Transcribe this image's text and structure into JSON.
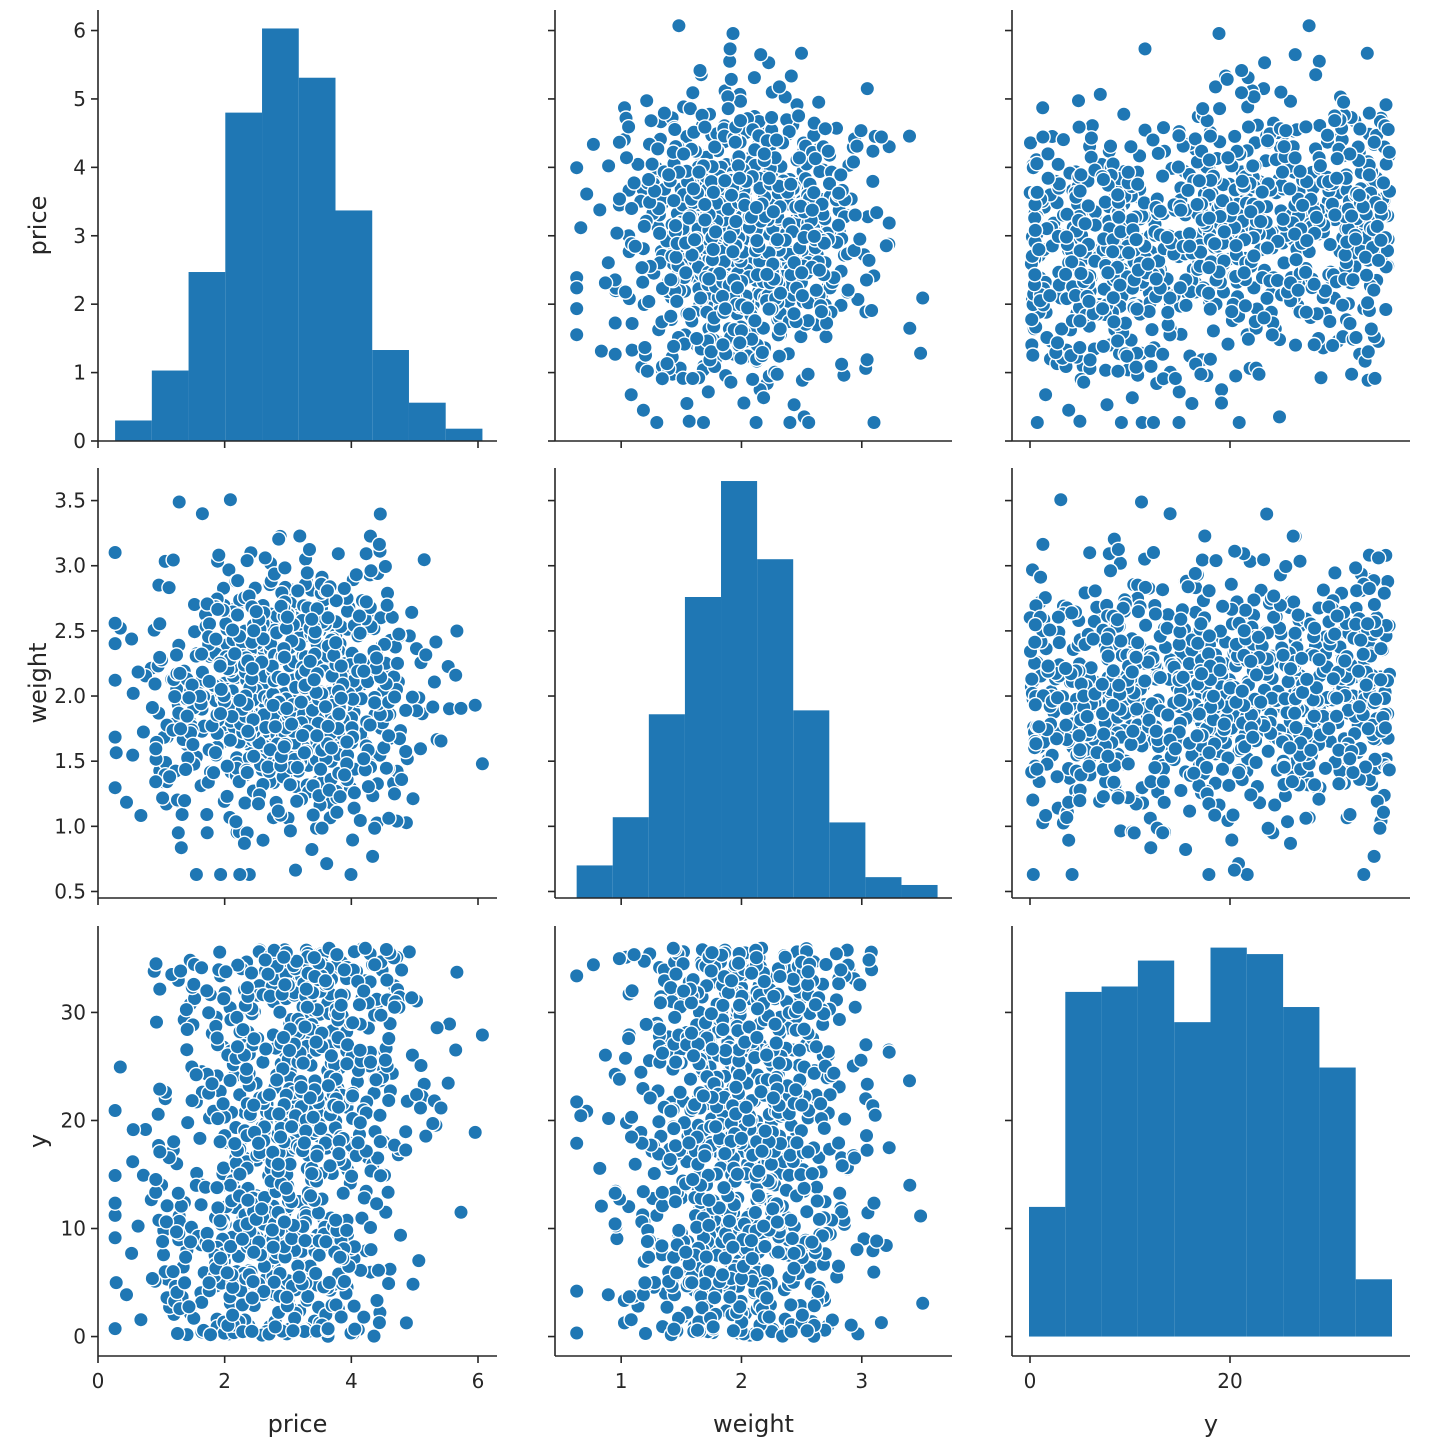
{
  "chart_data": {
    "type": "scatter",
    "layout": "pairplot",
    "variables": [
      "price",
      "weight",
      "y"
    ],
    "point_color": "#1f77b4",
    "hist_color": "#1f77b4",
    "point_count": 1000,
    "axes": {
      "price": {
        "range": [
          0,
          6.3
        ],
        "ticks": [
          0,
          1,
          2,
          3,
          4,
          5,
          6
        ],
        "hist_ticks": [
          0,
          2,
          4,
          6
        ]
      },
      "weight": {
        "range": [
          0.45,
          3.75
        ],
        "ticks": [
          0.5,
          1.0,
          1.5,
          2.0,
          2.5,
          3.0,
          3.5
        ],
        "hist_ticks": [
          1,
          2,
          3
        ]
      },
      "y": {
        "range": [
          -1.8,
          38
        ],
        "ticks": [
          0,
          10,
          20,
          30
        ],
        "hist_ticks": [
          0,
          20
        ]
      }
    },
    "tick_text": {
      "price": [
        "0",
        "1",
        "2",
        "3",
        "4",
        "5",
        "6"
      ],
      "price_bottom": [
        "0",
        "2",
        "4",
        "6"
      ],
      "weight": [
        "0.5",
        "1.0",
        "1.5",
        "2.0",
        "2.5",
        "3.0",
        "3.5"
      ],
      "weight_bottom": [
        "1",
        "2",
        "3"
      ],
      "y": [
        "0",
        "10",
        "20",
        "30"
      ],
      "y_bottom": [
        "0",
        "20"
      ]
    },
    "histograms": {
      "price": {
        "bin_edges": [
          0.27,
          0.85,
          1.43,
          2.01,
          2.59,
          3.17,
          3.75,
          4.33,
          4.91,
          5.49,
          6.07
        ],
        "heights_in_price_units": [
          0.3,
          1.03,
          2.47,
          4.8,
          6.03,
          5.31,
          3.37,
          1.33,
          0.56,
          0.18
        ]
      },
      "weight": {
        "bin_edges": [
          0.63,
          0.93,
          1.23,
          1.53,
          1.83,
          2.13,
          2.43,
          2.73,
          3.03,
          3.33,
          3.63
        ],
        "heights_in_weight_units": [
          0.7,
          1.07,
          1.86,
          2.76,
          3.65,
          3.05,
          1.89,
          1.03,
          0.61,
          0.55
        ]
      },
      "y": {
        "bin_edges": [
          -0.1,
          3.53,
          7.16,
          10.79,
          14.42,
          18.05,
          21.68,
          25.31,
          28.94,
          32.57,
          36.2
        ],
        "heights_in_y_units": [
          12.0,
          31.9,
          32.4,
          34.8,
          29.1,
          36.0,
          35.4,
          30.5,
          24.9,
          5.3
        ]
      }
    },
    "distributions": {
      "price": {
        "kind": "normal",
        "mean": 3.0,
        "sd": 1.0,
        "min": 0.27,
        "max": 6.07
      },
      "weight": {
        "kind": "normal",
        "mean": 2.0,
        "sd": 0.5,
        "min": 0.63,
        "max": 3.65
      },
      "y": {
        "kind": "uniform",
        "min": 0,
        "max": 36
      }
    },
    "correlation_price_y": 0.2
  }
}
